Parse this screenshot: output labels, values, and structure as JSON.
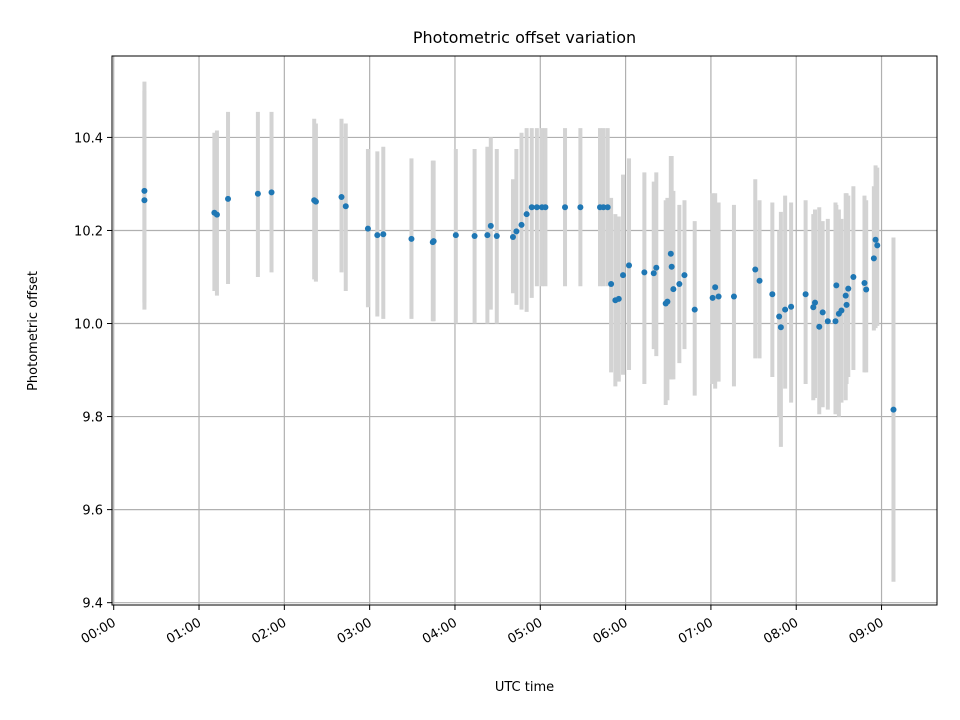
{
  "chart_data": {
    "type": "scatter",
    "title": "Photometric offset variation",
    "xlabel": "UTC time",
    "ylabel": "Photometric offset",
    "x_unit": "hours UTC",
    "xlim": [
      -0.02,
      9.65
    ],
    "ylim": [
      9.395,
      10.575
    ],
    "grid": true,
    "x_ticks": [
      {
        "v": 0,
        "label": "00:00"
      },
      {
        "v": 1,
        "label": "01:00"
      },
      {
        "v": 2,
        "label": "02:00"
      },
      {
        "v": 3,
        "label": "03:00"
      },
      {
        "v": 4,
        "label": "04:00"
      },
      {
        "v": 5,
        "label": "05:00"
      },
      {
        "v": 6,
        "label": "06:00"
      },
      {
        "v": 7,
        "label": "07:00"
      },
      {
        "v": 8,
        "label": "08:00"
      },
      {
        "v": 9,
        "label": "09:00"
      }
    ],
    "y_ticks": [
      {
        "v": 9.4,
        "label": "9.4"
      },
      {
        "v": 9.6,
        "label": "9.6"
      },
      {
        "v": 9.8,
        "label": "9.8"
      },
      {
        "v": 10.0,
        "label": "10.0"
      },
      {
        "v": 10.2,
        "label": "10.2"
      },
      {
        "v": 10.4,
        "label": "10.4"
      }
    ],
    "colors": {
      "points": "#1f77b4",
      "errorbars": "#d3d3d3",
      "grid": "#b0b0b0"
    },
    "points": [
      [
        0.36,
        10.285,
        10.045,
        10.52
      ],
      [
        0.36,
        10.265,
        10.03,
        10.5
      ],
      [
        1.18,
        10.238,
        10.07,
        10.41
      ],
      [
        1.21,
        10.234,
        10.06,
        10.415
      ],
      [
        1.34,
        10.268,
        10.085,
        10.455
      ],
      [
        1.69,
        10.279,
        10.1,
        10.455
      ],
      [
        1.85,
        10.282,
        10.11,
        10.455
      ],
      [
        2.35,
        10.265,
        10.095,
        10.44
      ],
      [
        2.37,
        10.262,
        10.09,
        10.43
      ],
      [
        2.67,
        10.272,
        10.11,
        10.44
      ],
      [
        2.72,
        10.252,
        10.07,
        10.43
      ],
      [
        2.98,
        10.204,
        10.035,
        10.375
      ],
      [
        3.09,
        10.19,
        10.015,
        10.37
      ],
      [
        3.16,
        10.192,
        10.01,
        10.38
      ],
      [
        3.49,
        10.182,
        10.01,
        10.355
      ],
      [
        3.74,
        10.175,
        10.005,
        10.35
      ],
      [
        3.75,
        10.177,
        10.005,
        10.35
      ],
      [
        4.01,
        10.19,
        10.0,
        10.375
      ],
      [
        4.23,
        10.188,
        10.0,
        10.375
      ],
      [
        4.38,
        10.19,
        10.0,
        10.38
      ],
      [
        4.42,
        10.21,
        10.03,
        10.4
      ],
      [
        4.49,
        10.188,
        10.0,
        10.375
      ],
      [
        4.68,
        10.186,
        10.065,
        10.31
      ],
      [
        4.72,
        10.198,
        10.04,
        10.375
      ],
      [
        4.78,
        10.212,
        10.03,
        10.41
      ],
      [
        4.84,
        10.235,
        10.025,
        10.42
      ],
      [
        4.9,
        10.25,
        10.055,
        10.42
      ],
      [
        4.96,
        10.25,
        10.08,
        10.42
      ],
      [
        5.02,
        10.25,
        10.08,
        10.42
      ],
      [
        5.06,
        10.25,
        10.08,
        10.42
      ],
      [
        5.29,
        10.25,
        10.08,
        10.42
      ],
      [
        5.47,
        10.25,
        10.08,
        10.42
      ],
      [
        5.7,
        10.25,
        10.08,
        10.42
      ],
      [
        5.74,
        10.25,
        10.08,
        10.42
      ],
      [
        5.79,
        10.25,
        10.08,
        10.42
      ],
      [
        5.83,
        10.085,
        9.895,
        10.27
      ],
      [
        5.88,
        10.05,
        9.865,
        10.235
      ],
      [
        5.92,
        10.053,
        9.875,
        10.23
      ],
      [
        5.97,
        10.104,
        9.89,
        10.32
      ],
      [
        6.04,
        10.125,
        9.9,
        10.355
      ],
      [
        6.22,
        10.11,
        9.87,
        10.325
      ],
      [
        6.33,
        10.108,
        9.945,
        10.305
      ],
      [
        6.36,
        10.12,
        9.93,
        10.325
      ],
      [
        6.47,
        10.043,
        9.825,
        10.265
      ],
      [
        6.49,
        10.047,
        9.835,
        10.27
      ],
      [
        6.53,
        10.15,
        9.88,
        10.36
      ],
      [
        6.54,
        10.122,
        9.88,
        10.36
      ],
      [
        6.56,
        10.074,
        9.88,
        10.285
      ],
      [
        6.63,
        10.085,
        9.915,
        10.255
      ],
      [
        6.69,
        10.104,
        9.945,
        10.265
      ],
      [
        6.81,
        10.03,
        9.845,
        10.22
      ],
      [
        7.02,
        10.055,
        9.87,
        10.28
      ],
      [
        7.05,
        10.078,
        9.86,
        10.28
      ],
      [
        7.09,
        10.058,
        9.875,
        10.26
      ],
      [
        7.27,
        10.058,
        9.865,
        10.255
      ],
      [
        7.52,
        10.116,
        9.925,
        10.31
      ],
      [
        7.57,
        10.092,
        9.925,
        10.265
      ],
      [
        7.72,
        10.063,
        9.885,
        10.26
      ],
      [
        7.8,
        10.015,
        9.8,
        10.2
      ],
      [
        7.82,
        9.992,
        9.735,
        10.24
      ],
      [
        7.87,
        10.03,
        9.86,
        10.275
      ],
      [
        7.94,
        10.036,
        9.83,
        10.26
      ],
      [
        8.11,
        10.063,
        9.87,
        10.265
      ],
      [
        8.2,
        10.035,
        9.835,
        10.235
      ],
      [
        8.22,
        10.045,
        9.84,
        10.245
      ],
      [
        8.27,
        9.993,
        9.805,
        10.25
      ],
      [
        8.31,
        10.024,
        9.82,
        10.22
      ],
      [
        8.37,
        10.005,
        9.815,
        10.225
      ],
      [
        8.46,
        10.005,
        9.805,
        10.26
      ],
      [
        8.47,
        10.082,
        9.84,
        10.255
      ],
      [
        8.5,
        10.021,
        9.8,
        10.245
      ],
      [
        8.53,
        10.028,
        9.83,
        10.225
      ],
      [
        8.58,
        10.06,
        9.835,
        10.28
      ],
      [
        8.59,
        10.04,
        9.87,
        10.28
      ],
      [
        8.61,
        10.075,
        9.885,
        10.275
      ],
      [
        8.67,
        10.1,
        9.9,
        10.295
      ],
      [
        8.8,
        10.087,
        9.895,
        10.275
      ],
      [
        8.82,
        10.073,
        9.895,
        10.265
      ],
      [
        8.91,
        10.14,
        9.985,
        10.295
      ],
      [
        8.93,
        10.18,
        9.99,
        10.34
      ],
      [
        8.95,
        10.168,
        9.995,
        10.335
      ],
      [
        9.14,
        9.815,
        9.445,
        10.185
      ]
    ]
  }
}
